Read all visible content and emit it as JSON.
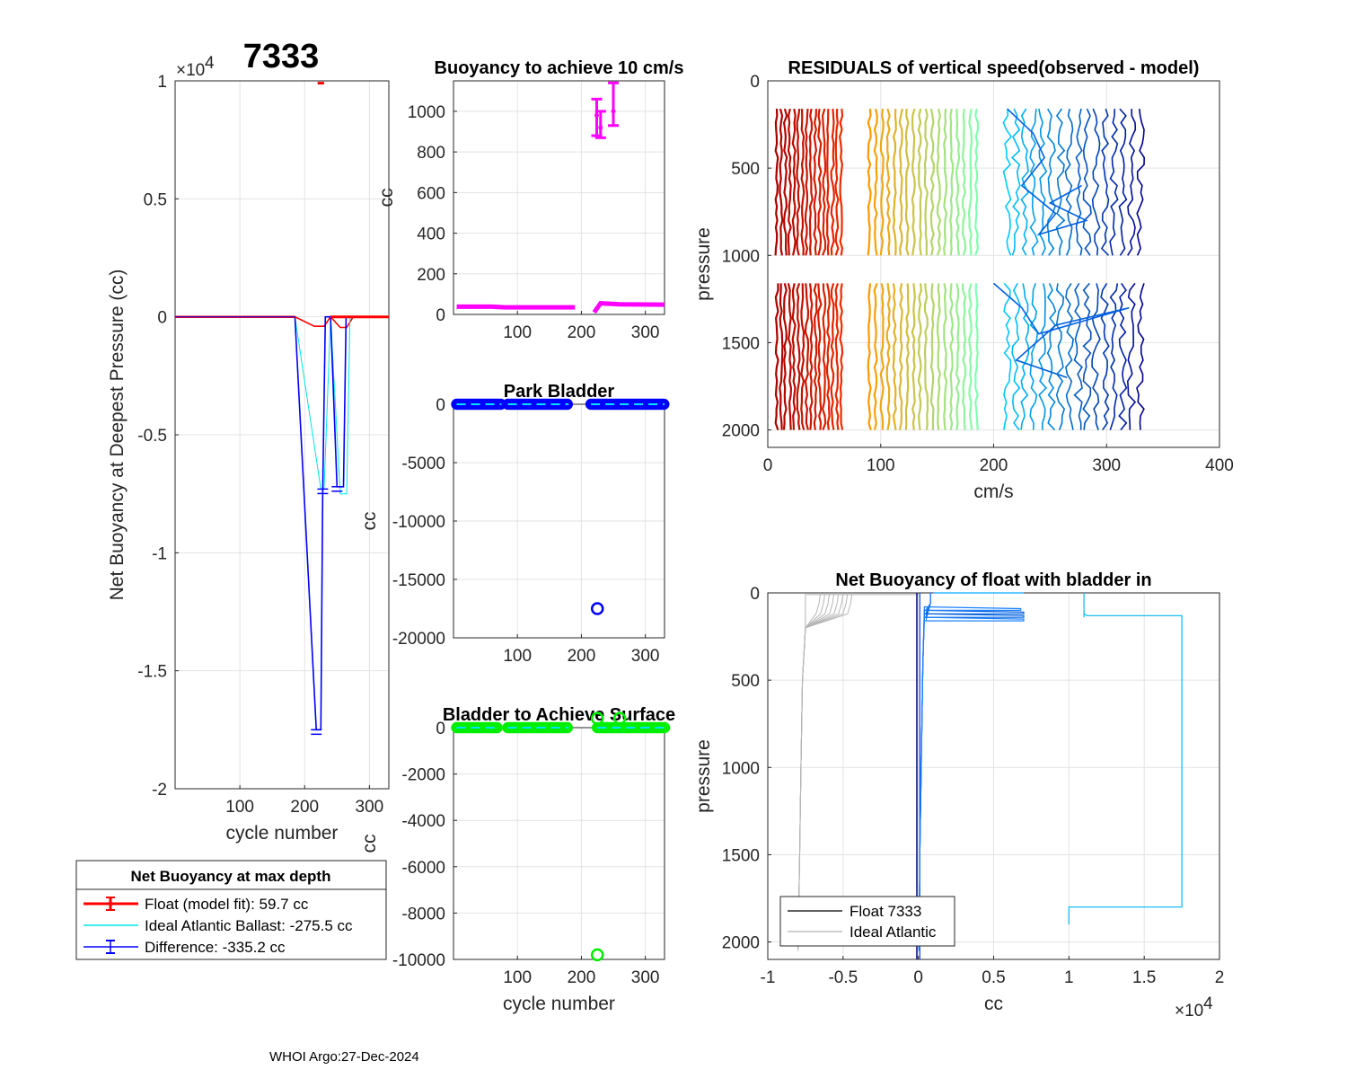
{
  "figure": {
    "float_id": "7333",
    "footer": "WHOI Argo:27-Dec-2024"
  },
  "chart_data": [
    {
      "id": "net-buoyancy",
      "type": "line",
      "title": "",
      "xlabel": "cycle number",
      "ylabel": "Net Buoyancy at Deepest Pressure (cc)",
      "xlim": [
        0,
        330
      ],
      "ylim": [
        -20000,
        10000
      ],
      "x_ticks": [
        100,
        200,
        300
      ],
      "y_ticks": [
        1,
        0.5,
        0,
        -0.5,
        -1,
        -1.5,
        -2
      ],
      "y_tick_labels": [
        "1",
        "0.5",
        "0",
        "-0.5",
        "-1",
        "-1.5",
        "-2"
      ],
      "y_exponent": "×10",
      "y_exponent_power": "4",
      "series": [
        {
          "name": "Float (model fit):  59.7 cc",
          "color": "#ff0000",
          "points": [
            [
              0,
              0
            ],
            [
              75,
              0
            ],
            [
              80,
              0
            ],
            [
              185,
              0
            ],
            [
              215,
              -400
            ],
            [
              230,
              -400
            ],
            [
              240,
              0
            ],
            [
              255,
              -450
            ],
            [
              265,
              -450
            ],
            [
              275,
              0
            ],
            [
              330,
              0
            ]
          ],
          "outlier": [
            [
              220,
              9900
            ],
            [
              230,
              9900
            ]
          ]
        },
        {
          "name": "Ideal Atlantic Ballast: -275.5 cc",
          "color": "#00e5e5",
          "points": [
            [
              0,
              0
            ],
            [
              185,
              0
            ],
            [
              225,
              -7300
            ],
            [
              230,
              -7300
            ],
            [
              240,
              0
            ],
            [
              255,
              -7500
            ],
            [
              265,
              -7500
            ],
            [
              270,
              0
            ],
            [
              330,
              0
            ]
          ]
        },
        {
          "name": "Difference: -335.2 cc",
          "color": "#0000ff",
          "points": [
            [
              0,
              0
            ],
            [
              185,
              0
            ],
            [
              218,
              -17500
            ],
            [
              225,
              -17500
            ],
            [
              228,
              -7300
            ],
            [
              232,
              0
            ],
            [
              240,
              0
            ],
            [
              250,
              -7200
            ],
            [
              260,
              -7200
            ],
            [
              264,
              0
            ],
            [
              330,
              0
            ]
          ]
        }
      ],
      "legend_title": "Net Buoyancy at max depth",
      "legend_entries": [
        "Float (model fit):  59.7 cc",
        "Ideal Atlantic Ballast: -275.5 cc",
        "Difference: -335.2 cc"
      ]
    },
    {
      "id": "buoyancy-10cms",
      "type": "scatter",
      "title": "Buoyancy to achieve 10 cm/s",
      "xlabel": "",
      "ylabel": "cc",
      "xlim": [
        0,
        330
      ],
      "ylim": [
        0,
        1150
      ],
      "x_ticks": [
        100,
        200,
        300
      ],
      "y_ticks": [
        0,
        200,
        400,
        600,
        800,
        1000
      ],
      "color": "#ff00ff",
      "baseline": [
        [
          5,
          38
        ],
        [
          60,
          38
        ],
        [
          80,
          35
        ],
        [
          140,
          35
        ],
        [
          190,
          35
        ]
      ],
      "baseline2": [
        [
          220,
          10
        ],
        [
          230,
          55
        ],
        [
          260,
          50
        ],
        [
          330,
          48
        ]
      ],
      "error_bars": [
        [
          224,
          980,
          880,
          1060
        ],
        [
          230,
          920,
          870,
          1000
        ],
        [
          250,
          1000,
          930,
          1140
        ]
      ]
    },
    {
      "id": "park-bladder",
      "type": "scatter",
      "title": "Park Bladder",
      "xlabel": "",
      "ylabel": "cc",
      "xlim": [
        0,
        330
      ],
      "ylim": [
        -20000,
        0
      ],
      "x_ticks": [
        100,
        200,
        300
      ],
      "y_ticks": [
        0,
        -5000,
        -10000,
        -15000,
        -20000
      ],
      "color": "#0000ff",
      "segments": [
        [
          5,
          75
        ],
        [
          85,
          180
        ],
        [
          215,
          330
        ]
      ],
      "outliers": [
        [
          225,
          -17500
        ]
      ]
    },
    {
      "id": "bladder-surface",
      "type": "scatter",
      "title": "Bladder to Achieve Surface",
      "xlabel": "cycle number",
      "ylabel": "cc",
      "xlim": [
        0,
        330
      ],
      "ylim": [
        -10000,
        0
      ],
      "x_ticks": [
        100,
        200,
        300
      ],
      "y_ticks": [
        0,
        -2000,
        -4000,
        -6000,
        -8000,
        -10000
      ],
      "color": "#00ee00",
      "segments": [
        [
          5,
          70
        ],
        [
          85,
          180
        ],
        [
          225,
          330
        ]
      ],
      "outliers": [
        [
          225,
          -9800
        ],
        [
          225,
          400
        ],
        [
          260,
          400
        ]
      ]
    },
    {
      "id": "residuals",
      "type": "line",
      "title": "RESIDUALS of vertical speed(observed - model)",
      "xlabel": "cm/s",
      "ylabel": "pressure",
      "xlim": [
        0,
        400
      ],
      "ylim": [
        0,
        2100
      ],
      "x_ticks": [
        0,
        100,
        200,
        300,
        400
      ],
      "y_ticks": [
        0,
        500,
        1000,
        1500,
        2000
      ],
      "column_groups": [
        {
          "x_start": 8,
          "x_end": 65,
          "color_range": [
            "#a80000",
            "#ee2a00"
          ],
          "count": 16
        },
        {
          "x_start": 90,
          "x_end": 185,
          "color_range": [
            "#ff9900",
            "#80ffb0"
          ],
          "count": 18
        },
        {
          "x_start": 212,
          "x_end": 330,
          "color_range": [
            "#00c8ff",
            "#000090"
          ],
          "count": 16
        }
      ]
    },
    {
      "id": "net-buoyancy-bladder",
      "type": "line",
      "title": "Net Buoyancy of float with bladder in",
      "xlabel": "cc",
      "ylabel": "pressure",
      "xlim": [
        -10000,
        20000
      ],
      "ylim": [
        0,
        2100
      ],
      "x_ticks": [
        -1,
        -0.5,
        0,
        0.5,
        1,
        1.5,
        2
      ],
      "x_tick_labels": [
        "-1",
        "-0.5",
        "0",
        "0.5",
        "1",
        "1.5",
        "2"
      ],
      "x_exponent": "×10",
      "x_exponent_power": "4",
      "y_ticks": [
        0,
        500,
        1000,
        1500,
        2000
      ],
      "legend_entries": [
        "Float 7333",
        "Ideal Atlantic"
      ]
    }
  ]
}
